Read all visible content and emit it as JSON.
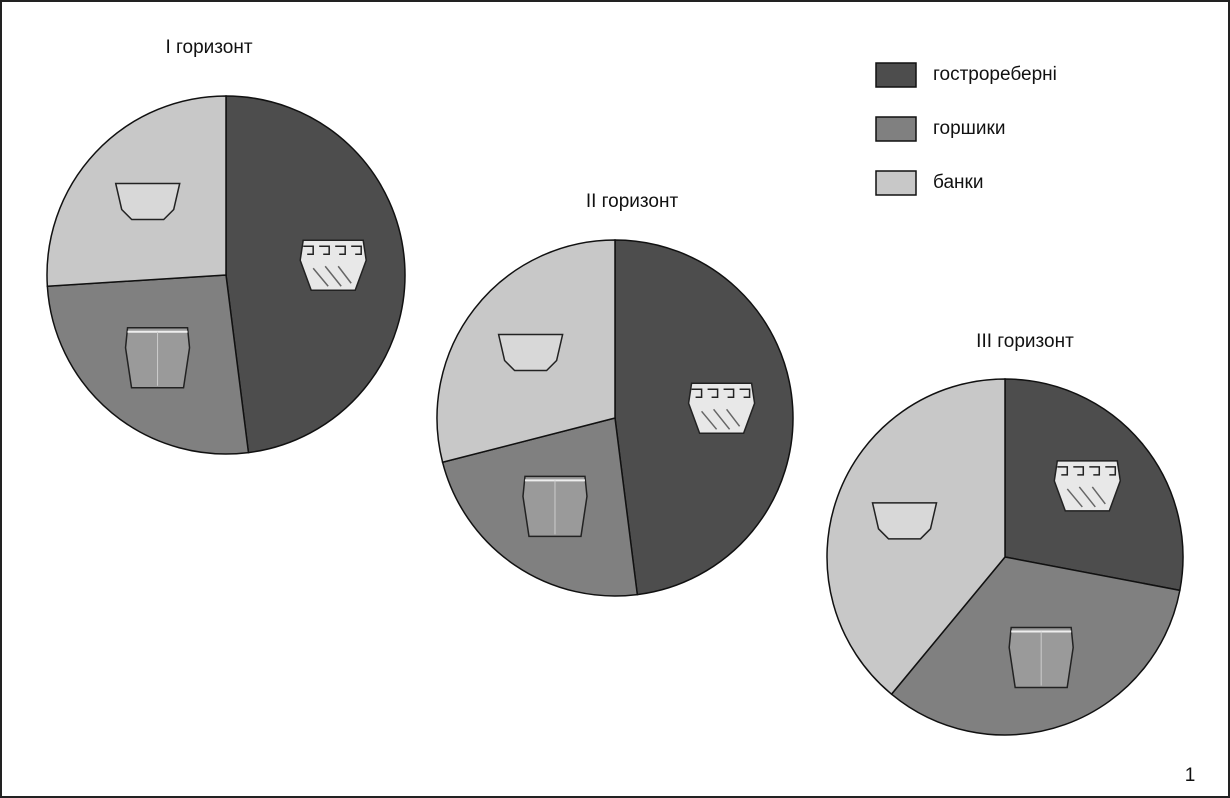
{
  "chart_data": [
    {
      "type": "pie",
      "title": "I горизонт",
      "categories": [
        "гострореберні",
        "горшики",
        "банки"
      ],
      "values": [
        48,
        26,
        26
      ],
      "colors": [
        "#4d4d4d",
        "#808080",
        "#c8c8c8"
      ],
      "legend": "top-right"
    },
    {
      "type": "pie",
      "title": "II горизонт",
      "categories": [
        "гострореберні",
        "горшики",
        "банки"
      ],
      "values": [
        48,
        23,
        29
      ],
      "colors": [
        "#4d4d4d",
        "#808080",
        "#c8c8c8"
      ]
    },
    {
      "type": "pie",
      "title": "III горизонт",
      "categories": [
        "гострореберні",
        "горшики",
        "банки"
      ],
      "values": [
        28,
        33,
        39
      ],
      "colors": [
        "#4d4d4d",
        "#808080",
        "#c8c8c8"
      ]
    }
  ],
  "figure_number": "1"
}
